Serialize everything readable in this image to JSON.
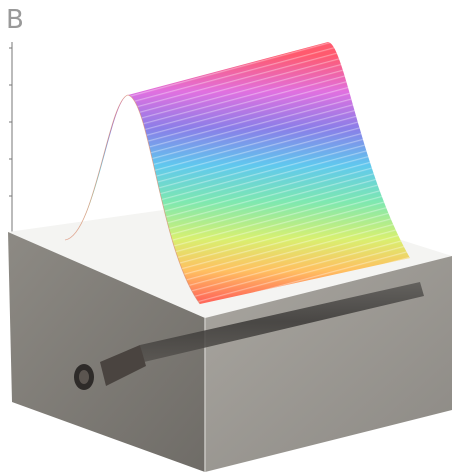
{
  "panel_label": "B"
}
